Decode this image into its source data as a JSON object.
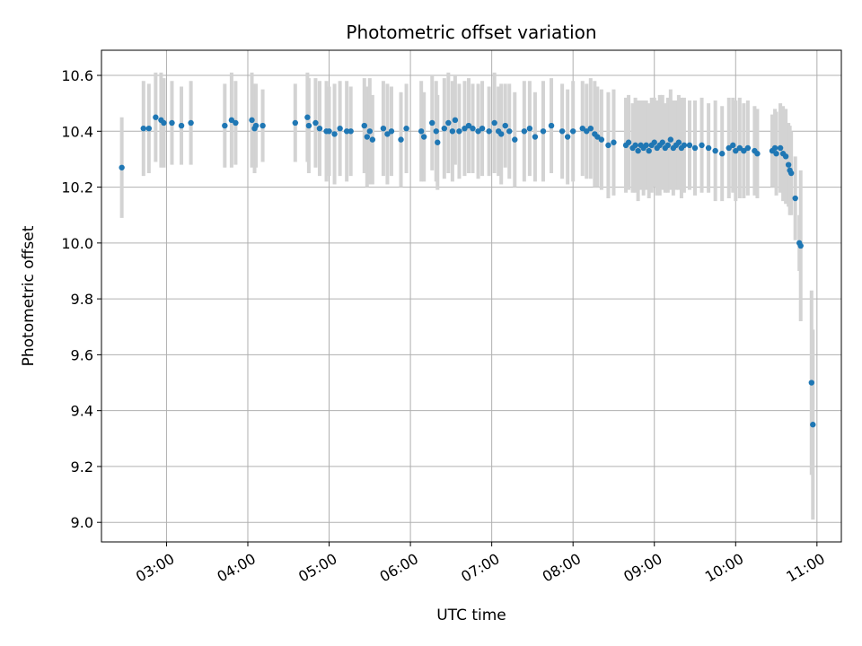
{
  "chart_data": {
    "type": "scatter",
    "title": "Photometric offset variation",
    "xlabel": "UTC time",
    "ylabel": "Photometric offset",
    "x_ticks": [
      "03:00",
      "04:00",
      "05:00",
      "06:00",
      "07:00",
      "08:00",
      "09:00",
      "10:00",
      "11:00"
    ],
    "y_ticks": [
      "9.0",
      "9.2",
      "9.4",
      "9.6",
      "9.8",
      "10.0",
      "10.2",
      "10.4",
      "10.6"
    ],
    "xlim": [
      "02:12",
      "11:18"
    ],
    "ylim": [
      8.93,
      10.69
    ],
    "grid": true,
    "colors": {
      "point": "#1f77b4",
      "errorbar": "#d3d3d3",
      "grid": "#b0b0b0"
    },
    "series": [
      {
        "points": [
          {
            "x": "02:27",
            "y": 10.27,
            "err": 0.18
          },
          {
            "x": "02:43",
            "y": 10.41,
            "err": 0.17
          },
          {
            "x": "02:47",
            "y": 10.41,
            "err": 0.16
          },
          {
            "x": "02:52",
            "y": 10.45,
            "err": 0.16
          },
          {
            "x": "02:56",
            "y": 10.44,
            "err": 0.17
          },
          {
            "x": "02:58",
            "y": 10.43,
            "err": 0.16
          },
          {
            "x": "03:04",
            "y": 10.43,
            "err": 0.15
          },
          {
            "x": "03:11",
            "y": 10.42,
            "err": 0.14
          },
          {
            "x": "03:18",
            "y": 10.43,
            "err": 0.15
          },
          {
            "x": "03:43",
            "y": 10.42,
            "err": 0.15
          },
          {
            "x": "03:48",
            "y": 10.44,
            "err": 0.17
          },
          {
            "x": "03:51",
            "y": 10.43,
            "err": 0.15
          },
          {
            "x": "04:03",
            "y": 10.44,
            "err": 0.17
          },
          {
            "x": "04:05",
            "y": 10.41,
            "err": 0.16
          },
          {
            "x": "04:06",
            "y": 10.42,
            "err": 0.15
          },
          {
            "x": "04:11",
            "y": 10.42,
            "err": 0.13
          },
          {
            "x": "04:35",
            "y": 10.43,
            "err": 0.14
          },
          {
            "x": "04:44",
            "y": 10.45,
            "err": 0.16
          },
          {
            "x": "04:45",
            "y": 10.42,
            "err": 0.17
          },
          {
            "x": "04:50",
            "y": 10.43,
            "err": 0.16
          },
          {
            "x": "04:53",
            "y": 10.41,
            "err": 0.17
          },
          {
            "x": "04:58",
            "y": 10.4,
            "err": 0.18
          },
          {
            "x": "05:00",
            "y": 10.4,
            "err": 0.16
          },
          {
            "x": "05:04",
            "y": 10.39,
            "err": 0.18
          },
          {
            "x": "05:08",
            "y": 10.41,
            "err": 0.17
          },
          {
            "x": "05:13",
            "y": 10.4,
            "err": 0.18
          },
          {
            "x": "05:16",
            "y": 10.4,
            "err": 0.16
          },
          {
            "x": "05:26",
            "y": 10.42,
            "err": 0.17
          },
          {
            "x": "05:28",
            "y": 10.38,
            "err": 0.18
          },
          {
            "x": "05:30",
            "y": 10.4,
            "err": 0.19
          },
          {
            "x": "05:32",
            "y": 10.37,
            "err": 0.16
          },
          {
            "x": "05:40",
            "y": 10.41,
            "err": 0.17
          },
          {
            "x": "05:43",
            "y": 10.39,
            "err": 0.18
          },
          {
            "x": "05:46",
            "y": 10.4,
            "err": 0.16
          },
          {
            "x": "05:53",
            "y": 10.37,
            "err": 0.17
          },
          {
            "x": "05:57",
            "y": 10.41,
            "err": 0.16
          },
          {
            "x": "06:08",
            "y": 10.4,
            "err": 0.18
          },
          {
            "x": "06:10",
            "y": 10.38,
            "err": 0.16
          },
          {
            "x": "06:16",
            "y": 10.43,
            "err": 0.17
          },
          {
            "x": "06:19",
            "y": 10.4,
            "err": 0.18
          },
          {
            "x": "06:20",
            "y": 10.36,
            "err": 0.17
          },
          {
            "x": "06:25",
            "y": 10.41,
            "err": 0.18
          },
          {
            "x": "06:28",
            "y": 10.43,
            "err": 0.18
          },
          {
            "x": "06:31",
            "y": 10.4,
            "err": 0.18
          },
          {
            "x": "06:33",
            "y": 10.44,
            "err": 0.16
          },
          {
            "x": "06:36",
            "y": 10.4,
            "err": 0.17
          },
          {
            "x": "06:40",
            "y": 10.41,
            "err": 0.17
          },
          {
            "x": "06:43",
            "y": 10.42,
            "err": 0.17
          },
          {
            "x": "06:46",
            "y": 10.41,
            "err": 0.16
          },
          {
            "x": "06:50",
            "y": 10.4,
            "err": 0.17
          },
          {
            "x": "06:53",
            "y": 10.41,
            "err": 0.17
          },
          {
            "x": "06:58",
            "y": 10.4,
            "err": 0.16
          },
          {
            "x": "07:02",
            "y": 10.43,
            "err": 0.18
          },
          {
            "x": "07:05",
            "y": 10.4,
            "err": 0.16
          },
          {
            "x": "07:07",
            "y": 10.39,
            "err": 0.18
          },
          {
            "x": "07:10",
            "y": 10.42,
            "err": 0.15
          },
          {
            "x": "07:13",
            "y": 10.4,
            "err": 0.17
          },
          {
            "x": "07:17",
            "y": 10.37,
            "err": 0.17
          },
          {
            "x": "07:24",
            "y": 10.4,
            "err": 0.18
          },
          {
            "x": "07:28",
            "y": 10.41,
            "err": 0.17
          },
          {
            "x": "07:32",
            "y": 10.38,
            "err": 0.16
          },
          {
            "x": "07:38",
            "y": 10.4,
            "err": 0.18
          },
          {
            "x": "07:44",
            "y": 10.42,
            "err": 0.17
          },
          {
            "x": "07:52",
            "y": 10.4,
            "err": 0.17
          },
          {
            "x": "07:56",
            "y": 10.38,
            "err": 0.17
          },
          {
            "x": "08:00",
            "y": 10.4,
            "err": 0.18
          },
          {
            "x": "08:07",
            "y": 10.41,
            "err": 0.17
          },
          {
            "x": "08:10",
            "y": 10.4,
            "err": 0.17
          },
          {
            "x": "08:13",
            "y": 10.41,
            "err": 0.18
          },
          {
            "x": "08:16",
            "y": 10.39,
            "err": 0.19
          },
          {
            "x": "08:18",
            "y": 10.38,
            "err": 0.18
          },
          {
            "x": "08:21",
            "y": 10.37,
            "err": 0.18
          },
          {
            "x": "08:26",
            "y": 10.35,
            "err": 0.19
          },
          {
            "x": "08:30",
            "y": 10.36,
            "err": 0.19
          },
          {
            "x": "08:39",
            "y": 10.35,
            "err": 0.17
          },
          {
            "x": "08:41",
            "y": 10.36,
            "err": 0.17
          },
          {
            "x": "08:44",
            "y": 10.34,
            "err": 0.16
          },
          {
            "x": "08:46",
            "y": 10.35,
            "err": 0.17
          },
          {
            "x": "08:48",
            "y": 10.33,
            "err": 0.18
          },
          {
            "x": "08:50",
            "y": 10.35,
            "err": 0.16
          },
          {
            "x": "08:52",
            "y": 10.34,
            "err": 0.17
          },
          {
            "x": "08:54",
            "y": 10.35,
            "err": 0.16
          },
          {
            "x": "08:56",
            "y": 10.33,
            "err": 0.17
          },
          {
            "x": "08:58",
            "y": 10.35,
            "err": 0.17
          },
          {
            "x": "09:00",
            "y": 10.36,
            "err": 0.16
          },
          {
            "x": "09:02",
            "y": 10.34,
            "err": 0.17
          },
          {
            "x": "09:04",
            "y": 10.35,
            "err": 0.18
          },
          {
            "x": "09:06",
            "y": 10.36,
            "err": 0.17
          },
          {
            "x": "09:08",
            "y": 10.34,
            "err": 0.16
          },
          {
            "x": "09:10",
            "y": 10.35,
            "err": 0.17
          },
          {
            "x": "09:12",
            "y": 10.37,
            "err": 0.18
          },
          {
            "x": "09:14",
            "y": 10.34,
            "err": 0.17
          },
          {
            "x": "09:16",
            "y": 10.35,
            "err": 0.16
          },
          {
            "x": "09:18",
            "y": 10.36,
            "err": 0.17
          },
          {
            "x": "09:20",
            "y": 10.34,
            "err": 0.18
          },
          {
            "x": "09:22",
            "y": 10.35,
            "err": 0.17
          },
          {
            "x": "09:26",
            "y": 10.35,
            "err": 0.16
          },
          {
            "x": "09:30",
            "y": 10.34,
            "err": 0.17
          },
          {
            "x": "09:35",
            "y": 10.35,
            "err": 0.17
          },
          {
            "x": "09:40",
            "y": 10.34,
            "err": 0.16
          },
          {
            "x": "09:45",
            "y": 10.33,
            "err": 0.18
          },
          {
            "x": "09:50",
            "y": 10.32,
            "err": 0.17
          },
          {
            "x": "09:55",
            "y": 10.34,
            "err": 0.18
          },
          {
            "x": "09:58",
            "y": 10.35,
            "err": 0.17
          },
          {
            "x": "10:00",
            "y": 10.33,
            "err": 0.18
          },
          {
            "x": "10:03",
            "y": 10.34,
            "err": 0.18
          },
          {
            "x": "10:06",
            "y": 10.33,
            "err": 0.17
          },
          {
            "x": "10:09",
            "y": 10.34,
            "err": 0.17
          },
          {
            "x": "10:14",
            "y": 10.33,
            "err": 0.16
          },
          {
            "x": "10:16",
            "y": 10.32,
            "err": 0.16
          },
          {
            "x": "10:27",
            "y": 10.33,
            "err": 0.13
          },
          {
            "x": "10:29",
            "y": 10.34,
            "err": 0.14
          },
          {
            "x": "10:30",
            "y": 10.32,
            "err": 0.15
          },
          {
            "x": "10:33",
            "y": 10.34,
            "err": 0.16
          },
          {
            "x": "10:35",
            "y": 10.32,
            "err": 0.17
          },
          {
            "x": "10:37",
            "y": 10.31,
            "err": 0.17
          },
          {
            "x": "10:39",
            "y": 10.28,
            "err": 0.15
          },
          {
            "x": "10:40",
            "y": 10.26,
            "err": 0.16
          },
          {
            "x": "10:41",
            "y": 10.25,
            "err": 0.15
          },
          {
            "x": "10:44",
            "y": 10.16,
            "err": 0.15
          },
          {
            "x": "10:47",
            "y": 10.0,
            "err": 0.1
          },
          {
            "x": "10:48",
            "y": 9.99,
            "err": 0.27
          },
          {
            "x": "10:56",
            "y": 9.5,
            "err": 0.33
          },
          {
            "x": "10:57",
            "y": 9.35,
            "err": 0.34
          }
        ]
      }
    ]
  }
}
